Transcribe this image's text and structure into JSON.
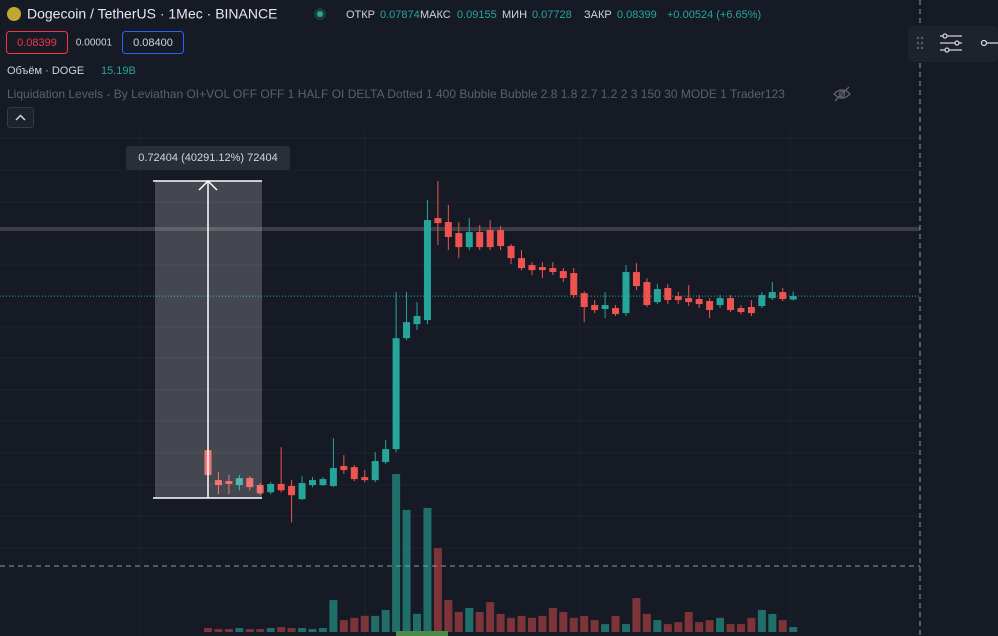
{
  "header": {
    "symbol": "Dogecoin / TetherUS · 1Мес · BINANCE",
    "open_label": "ОТКР",
    "high_label": "МАКС",
    "low_label": "МИН",
    "close_label": "ЗАКР",
    "change": "+0.00524 (+6.65%)",
    "bid": "0.08399",
    "spread": "0.00001",
    "ask": "0.08400",
    "volume_title": "Объём · DOGE",
    "volume_last": "15.19B",
    "indicator": "Liquidation Levels - By Leviathan OI+VOL OFF OFF 1 HALF OI DELTA Dotted 1 400 Bubble Bubble 2.8 1.8 2.7 1.2 2 3 150 30 MODE 1 Trader123"
  },
  "measure": {
    "label": "0.72404 (40291.12%) 72404"
  },
  "chart_data": {
    "type": "candlestick",
    "log_scale": true,
    "ylim": [
      0.000135,
      22.8
    ],
    "up_color": "#26a69a",
    "down_color": "#ef5350",
    "candles": [
      [
        0.00455,
        0.00472,
        0.00268,
        0.00284
      ],
      [
        0.00258,
        0.003,
        0.00198,
        0.00235
      ],
      [
        0.00253,
        0.00284,
        0.00198,
        0.0024
      ],
      [
        0.00235,
        0.00284,
        0.00213,
        0.00268
      ],
      [
        0.00268,
        0.00279,
        0.00213,
        0.00226
      ],
      [
        0.00235,
        0.00244,
        0.00194,
        0.00201
      ],
      [
        0.00205,
        0.00248,
        0.00198,
        0.0024
      ],
      [
        0.0024,
        0.00481,
        0.00205,
        0.00213
      ],
      [
        0.00231,
        0.00258,
        0.00116,
        0.00194
      ],
      [
        0.0018,
        0.00279,
        0.00177,
        0.00244
      ],
      [
        0.00235,
        0.00273,
        0.00226,
        0.00258
      ],
      [
        0.00235,
        0.00273,
        0.00231,
        0.00263
      ],
      [
        0.00231,
        0.00571,
        0.00226,
        0.00324
      ],
      [
        0.00337,
        0.00414,
        0.0029,
        0.00312
      ],
      [
        0.0033,
        0.00343,
        0.00253,
        0.00263
      ],
      [
        0.00273,
        0.00312,
        0.00248,
        0.00258
      ],
      [
        0.00258,
        0.00438,
        0.00248,
        0.0037
      ],
      [
        0.00363,
        0.0055,
        0.0035,
        0.00464
      ],
      [
        0.00464,
        0.0906,
        0.00438,
        0.0379
      ],
      [
        0.0379,
        0.0906,
        0.0365,
        0.0513
      ],
      [
        0.0494,
        0.075,
        0.0442,
        0.0576
      ],
      [
        0.0533,
        0.517,
        0.0494,
        0.354
      ],
      [
        0.368,
        0.741,
        0.2207,
        0.334
      ],
      [
        0.341,
        0.471,
        0.2006,
        0.257
      ],
      [
        0.277,
        0.341,
        0.1723,
        0.2122
      ],
      [
        0.2122,
        0.368,
        0.2006,
        0.282
      ],
      [
        0.282,
        0.322,
        0.2006,
        0.2122
      ],
      [
        0.293,
        0.354,
        0.2006,
        0.2122
      ],
      [
        0.293,
        0.316,
        0.2006,
        0.2166
      ],
      [
        0.2166,
        0.2249,
        0.154,
        0.1723
      ],
      [
        0.1723,
        0.2006,
        0.1374,
        0.1427
      ],
      [
        0.1511,
        0.1598,
        0.125,
        0.1374
      ],
      [
        0.1455,
        0.1598,
        0.1181,
        0.1374
      ],
      [
        0.1427,
        0.1598,
        0.125,
        0.1323
      ],
      [
        0.1348,
        0.1427,
        0.1095,
        0.1181
      ],
      [
        0.1298,
        0.1427,
        0.0809,
        0.0856
      ],
      [
        0.0888,
        0.0922,
        0.0513,
        0.0683
      ],
      [
        0.0709,
        0.0779,
        0.0609,
        0.0645
      ],
      [
        0.0657,
        0.0906,
        0.0554,
        0.0709
      ],
      [
        0.067,
        0.0709,
        0.0576,
        0.0598
      ],
      [
        0.0609,
        0.1511,
        0.0576,
        0.1323
      ],
      [
        0.1323,
        0.1569,
        0.0941,
        0.1015
      ],
      [
        0.1095,
        0.1181,
        0.0683,
        0.0709
      ],
      [
        0.075,
        0.1055,
        0.0722,
        0.0959
      ],
      [
        0.0978,
        0.1055,
        0.0722,
        0.0779
      ],
      [
        0.084,
        0.0906,
        0.0722,
        0.0779
      ],
      [
        0.0809,
        0.1035,
        0.0696,
        0.075
      ],
      [
        0.0794,
        0.0856,
        0.067,
        0.0722
      ],
      [
        0.0765,
        0.0809,
        0.0554,
        0.0645
      ],
      [
        0.0709,
        0.0856,
        0.067,
        0.0809
      ],
      [
        0.0809,
        0.0856,
        0.0621,
        0.0645
      ],
      [
        0.067,
        0.0709,
        0.0598,
        0.0621
      ],
      [
        0.0683,
        0.0779,
        0.0576,
        0.0609
      ],
      [
        0.0696,
        0.0906,
        0.067,
        0.0856
      ],
      [
        0.0809,
        0.1095,
        0.0779,
        0.0906
      ],
      [
        0.0906,
        0.0978,
        0.0765,
        0.0794
      ],
      [
        0.07874,
        0.09155,
        0.07728,
        0.08399
      ]
    ],
    "volume": {
      "ylim": [
        0,
        1920
      ],
      "up_color": "#1f6e69",
      "down_color": "#7c3439",
      "values": [
        12,
        9,
        9,
        12,
        9,
        9,
        12,
        15,
        12,
        12,
        9,
        12,
        97,
        36,
        43,
        49,
        49,
        67,
        480,
        371,
        55,
        377,
        255,
        97,
        61,
        73,
        61,
        91,
        55,
        43,
        49,
        43,
        49,
        73,
        61,
        43,
        49,
        36,
        24,
        49,
        24,
        103,
        55,
        36,
        24,
        30,
        61,
        30,
        36,
        43,
        24,
        24,
        43,
        67,
        55,
        36,
        15.19
      ]
    }
  }
}
